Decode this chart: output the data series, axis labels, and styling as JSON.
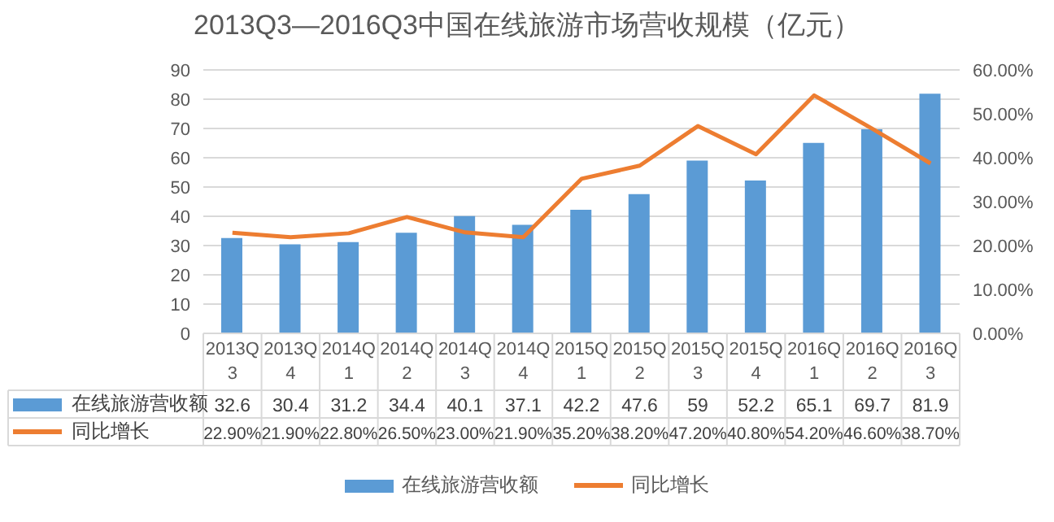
{
  "chart_data": {
    "type": "bar",
    "title": "2013Q3—2016Q3中国在线旅游市场营收规模（亿元）",
    "categories": [
      "2013Q3",
      "2013Q4",
      "2014Q1",
      "2014Q2",
      "2014Q3",
      "2014Q4",
      "2015Q1",
      "2015Q2",
      "2015Q3",
      "2015Q4",
      "2016Q1",
      "2016Q2",
      "2016Q3"
    ],
    "series": [
      {
        "name": "在线旅游营收额",
        "color": "#5b9bd5",
        "values": [
          32.6,
          30.4,
          31.2,
          34.4,
          40.1,
          37.1,
          42.2,
          47.6,
          59,
          52.2,
          65.1,
          69.7,
          81.9
        ],
        "value_labels": [
          "32.6",
          "30.4",
          "31.2",
          "34.4",
          "40.1",
          "37.1",
          "42.2",
          "47.6",
          "59",
          "52.2",
          "65.1",
          "69.7",
          "81.9"
        ]
      },
      {
        "name": "同比增长",
        "type": "line",
        "axis": "y2",
        "color": "#ed7d31",
        "values": [
          22.9,
          21.9,
          22.8,
          26.5,
          23.0,
          21.9,
          35.2,
          38.2,
          47.2,
          40.8,
          54.2,
          46.6,
          38.7
        ],
        "value_labels": [
          "22.90%",
          "21.90%",
          "22.80%",
          "26.50%",
          "23.00%",
          "21.90%",
          "35.20%",
          "38.20%",
          "47.20%",
          "40.80%",
          "54.20%",
          "46.60%",
          "38.70%"
        ]
      }
    ],
    "ylim": [
      0,
      90
    ],
    "yticks": [
      0,
      10,
      20,
      30,
      40,
      50,
      60,
      70,
      80,
      90
    ],
    "y2lim": [
      0,
      60
    ],
    "y2ticks": [
      {
        "value": 0,
        "label": "0.00%"
      },
      {
        "value": 10,
        "label": "10.00%"
      },
      {
        "value": 20,
        "label": "20.00%"
      },
      {
        "value": 30,
        "label": "30.00%"
      },
      {
        "value": 40,
        "label": "40.00%"
      },
      {
        "value": 50,
        "label": "50.00%"
      },
      {
        "value": 60,
        "label": "60.00%"
      }
    ],
    "grid": "y",
    "legend": "bottom",
    "marker": "none",
    "line_style": "solid"
  }
}
